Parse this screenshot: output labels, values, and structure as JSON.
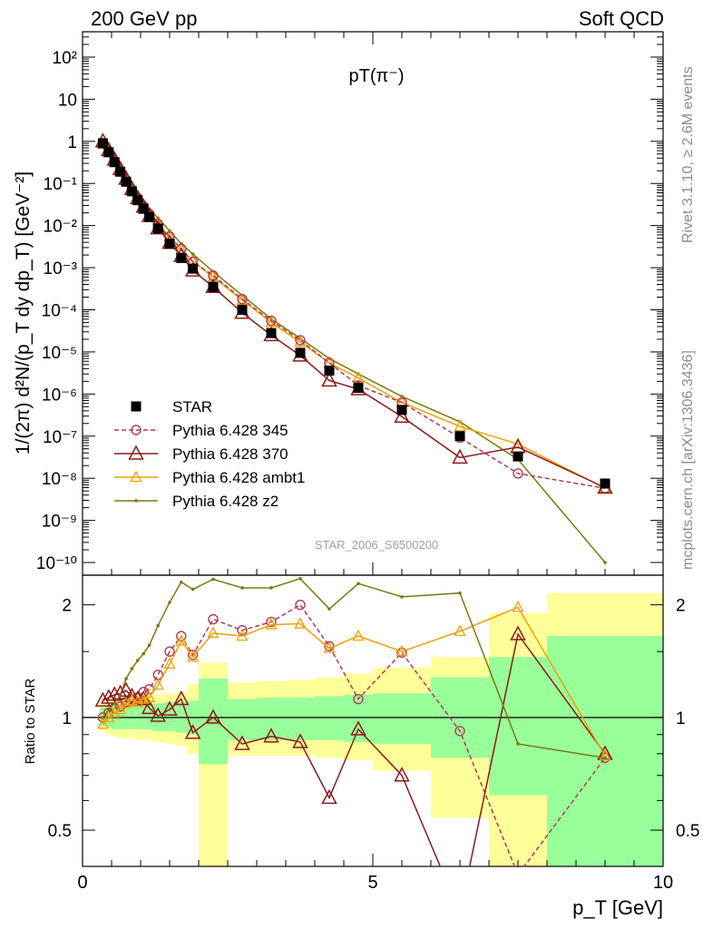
{
  "header": {
    "left": "200 GeV pp",
    "right": "Soft QCD"
  },
  "side_labels": {
    "top": "Rivet 3.1.10, ≥ 2.6M events",
    "bottom": "mcplots.cern.ch [arXiv:1306.3436]"
  },
  "colors": {
    "star": "#000000",
    "p345": "#b03a5b",
    "p370": "#8c1b1b",
    "ambt1": "#f0a000",
    "z2": "#7a7a10",
    "band_green": "#99ff99",
    "band_yellow": "#ffff99",
    "watermark": "#a0a0a0"
  },
  "chart_data": [
    {
      "type": "line",
      "title": "pT(π⁻)",
      "ylabel": "1/(2π) d²N/(p_T dy dp_T) [GeV⁻²]",
      "xlim": [
        0,
        10
      ],
      "ylim": [
        5e-11,
        400
      ],
      "yscale": "log",
      "ytick_labels": [
        "10⁻¹⁰",
        "10⁻⁹",
        "10⁻⁸",
        "10⁻⁷",
        "10⁻⁶",
        "10⁻⁵",
        "10⁻⁴",
        "10⁻³",
        "10⁻²",
        "10⁻¹",
        "1",
        "10",
        "10²"
      ],
      "watermark": "STAR_2006_S6500200",
      "legend_position": "bottom-left",
      "x": [
        0.35,
        0.45,
        0.55,
        0.65,
        0.75,
        0.85,
        0.95,
        1.05,
        1.15,
        1.3,
        1.5,
        1.7,
        1.9,
        2.25,
        2.75,
        3.25,
        3.75,
        4.25,
        4.75,
        5.5,
        6.5,
        7.5,
        9.0
      ],
      "series": [
        {
          "name": "STAR",
          "marker": "square",
          "values": [
            0.9,
            0.55,
            0.32,
            0.19,
            0.11,
            0.065,
            0.04,
            0.025,
            0.016,
            0.0085,
            0.0037,
            0.0017,
            0.00095,
            0.00035,
            0.0001,
            2.8e-05,
            9.5e-06,
            3.6e-06,
            1.4e-06,
            4.2e-07,
            1e-07,
            3.3e-08,
            7.5e-09
          ]
        },
        {
          "name": "Pythia 6.428 345",
          "marker": "open-circle",
          "dashed": true,
          "values": [
            0.9,
            0.57,
            0.34,
            0.2,
            0.12,
            0.072,
            0.045,
            0.029,
            0.019,
            0.011,
            0.0055,
            0.0028,
            0.0014,
            0.00065,
            0.00018,
            5.5e-05,
            1.9e-05,
            5.5e-06,
            1.6e-06,
            6.3e-07,
            9.2e-08,
            1.3e-08,
            5.8e-09
          ]
        },
        {
          "name": "Pythia 6.428 370",
          "marker": "open-triangle",
          "values": [
            1.0,
            0.62,
            0.37,
            0.22,
            0.13,
            0.074,
            0.045,
            0.028,
            0.017,
            0.0086,
            0.0039,
            0.0019,
            0.00086,
            0.00035,
            8.5e-05,
            2.5e-05,
            8.2e-06,
            2.1e-06,
            1.3e-06,
            2.9e-07,
            3.1e-08,
            5.5e-08,
            6e-09
          ]
        },
        {
          "name": "Pythia 6.428 ambt1",
          "marker": "open-triangle-small",
          "values": [
            0.86,
            0.55,
            0.33,
            0.2,
            0.12,
            0.072,
            0.044,
            0.028,
            0.018,
            0.011,
            0.0055,
            0.0027,
            0.0014,
            0.0006,
            0.00017,
            5e-05,
            1.7e-05,
            5.5e-06,
            2.4e-06,
            6.3e-07,
            1.7e-07,
            6.5e-08,
            5.8e-09
          ]
        },
        {
          "name": "Pythia 6.428 z2",
          "marker": "dot",
          "values": [
            0.9,
            0.58,
            0.35,
            0.22,
            0.14,
            0.088,
            0.057,
            0.037,
            0.025,
            0.015,
            0.0075,
            0.0037,
            0.0021,
            0.00081,
            0.00022,
            6.1e-05,
            2.1e-05,
            7e-06,
            3e-06,
            8.8e-07,
            2.2e-07,
            2.8e-08,
            1e-10
          ]
        }
      ]
    },
    {
      "type": "line",
      "ylabel": "Ratio to STAR",
      "xlabel": "p_T [GeV]",
      "xlim": [
        0,
        10
      ],
      "ylim": [
        0.4,
        2.4
      ],
      "yscale": "log",
      "yticks": [
        0.5,
        1,
        2
      ],
      "ytick_labels": [
        "0.5",
        "1",
        "2"
      ],
      "xticks": [
        0,
        5,
        10
      ],
      "xtick_labels": [
        "0",
        "5",
        "10"
      ],
      "reference_line": 1,
      "bands": [
        {
          "x0": 0.3,
          "x1": 0.4,
          "green": [
            0.95,
            1.06
          ],
          "yellow": [
            0.92,
            1.09
          ]
        },
        {
          "x0": 0.4,
          "x1": 0.5,
          "green": [
            0.94,
            1.07
          ],
          "yellow": [
            0.9,
            1.1
          ]
        },
        {
          "x0": 0.5,
          "x1": 0.6,
          "green": [
            0.93,
            1.08
          ],
          "yellow": [
            0.89,
            1.11
          ]
        },
        {
          "x0": 0.6,
          "x1": 0.7,
          "green": [
            0.93,
            1.08
          ],
          "yellow": [
            0.88,
            1.12
          ]
        },
        {
          "x0": 0.7,
          "x1": 0.8,
          "green": [
            0.93,
            1.08
          ],
          "yellow": [
            0.88,
            1.12
          ]
        },
        {
          "x0": 0.8,
          "x1": 0.9,
          "green": [
            0.93,
            1.08
          ],
          "yellow": [
            0.88,
            1.13
          ]
        },
        {
          "x0": 0.9,
          "x1": 1.0,
          "green": [
            0.93,
            1.08
          ],
          "yellow": [
            0.87,
            1.13
          ]
        },
        {
          "x0": 1.0,
          "x1": 1.1,
          "green": [
            0.93,
            1.08
          ],
          "yellow": [
            0.87,
            1.14
          ]
        },
        {
          "x0": 1.1,
          "x1": 1.2,
          "green": [
            0.93,
            1.08
          ],
          "yellow": [
            0.87,
            1.14
          ]
        },
        {
          "x0": 1.2,
          "x1": 1.4,
          "green": [
            0.92,
            1.09
          ],
          "yellow": [
            0.86,
            1.15
          ]
        },
        {
          "x0": 1.4,
          "x1": 1.6,
          "green": [
            0.92,
            1.1
          ],
          "yellow": [
            0.85,
            1.16
          ]
        },
        {
          "x0": 1.6,
          "x1": 1.8,
          "green": [
            0.91,
            1.1
          ],
          "yellow": [
            0.84,
            1.17
          ]
        },
        {
          "x0": 1.8,
          "x1": 2.0,
          "green": [
            0.9,
            1.11
          ],
          "yellow": [
            0.8,
            1.23
          ]
        },
        {
          "x0": 2.0,
          "x1": 2.5,
          "green": [
            0.75,
            1.27
          ],
          "yellow": [
            0.38,
            1.4
          ]
        },
        {
          "x0": 2.5,
          "x1": 3.0,
          "green": [
            0.87,
            1.12
          ],
          "yellow": [
            0.79,
            1.24
          ]
        },
        {
          "x0": 3.0,
          "x1": 3.5,
          "green": [
            0.87,
            1.13
          ],
          "yellow": [
            0.79,
            1.25
          ]
        },
        {
          "x0": 3.5,
          "x1": 4.0,
          "green": [
            0.87,
            1.13
          ],
          "yellow": [
            0.79,
            1.26
          ]
        },
        {
          "x0": 4.0,
          "x1": 4.5,
          "green": [
            0.87,
            1.14
          ],
          "yellow": [
            0.78,
            1.28
          ]
        },
        {
          "x0": 4.5,
          "x1": 5.0,
          "green": [
            0.86,
            1.15
          ],
          "yellow": [
            0.77,
            1.31
          ]
        },
        {
          "x0": 5.0,
          "x1": 6.0,
          "green": [
            0.85,
            1.16
          ],
          "yellow": [
            0.72,
            1.36
          ]
        },
        {
          "x0": 6.0,
          "x1": 7.0,
          "green": [
            0.78,
            1.28
          ],
          "yellow": [
            0.54,
            1.45
          ]
        },
        {
          "x0": 7.0,
          "x1": 8.0,
          "green": [
            0.62,
            1.45
          ],
          "yellow": [
            0.4,
            1.9
          ]
        },
        {
          "x0": 8.0,
          "x1": 10.0,
          "green": [
            0.4,
            1.65
          ],
          "yellow": [
            0.4,
            2.15
          ]
        }
      ],
      "series": [
        {
          "name": "Pythia 6.428 345",
          "values": [
            1.0,
            1.03,
            1.06,
            1.07,
            1.1,
            1.11,
            1.13,
            1.17,
            1.19,
            1.3,
            1.5,
            1.65,
            1.47,
            1.83,
            1.71,
            1.8,
            2.0,
            1.55,
            1.12,
            1.49,
            0.92,
            0.38,
            0.78
          ]
        },
        {
          "name": "Pythia 6.428 370",
          "values": [
            1.11,
            1.13,
            1.15,
            1.16,
            1.18,
            1.14,
            1.12,
            1.12,
            1.06,
            1.01,
            1.05,
            1.12,
            0.91,
            1.0,
            0.85,
            0.89,
            0.86,
            0.61,
            0.93,
            0.7,
            0.3,
            1.67,
            0.8
          ]
        },
        {
          "name": "Pythia 6.428 ambt1",
          "values": [
            0.96,
            1.0,
            1.03,
            1.05,
            1.09,
            1.11,
            1.1,
            1.12,
            1.13,
            1.22,
            1.39,
            1.6,
            1.45,
            1.68,
            1.65,
            1.77,
            1.78,
            1.53,
            1.65,
            1.5,
            1.7,
            1.97,
            0.79
          ]
        },
        {
          "name": "Pythia 6.428 z2",
          "values": [
            1.0,
            1.05,
            1.09,
            1.15,
            1.27,
            1.35,
            1.42,
            1.48,
            1.56,
            1.76,
            2.03,
            2.3,
            2.2,
            2.34,
            2.22,
            2.22,
            2.35,
            1.95,
            2.28,
            2.1,
            2.15,
            0.85,
            0.78
          ]
        }
      ]
    }
  ]
}
